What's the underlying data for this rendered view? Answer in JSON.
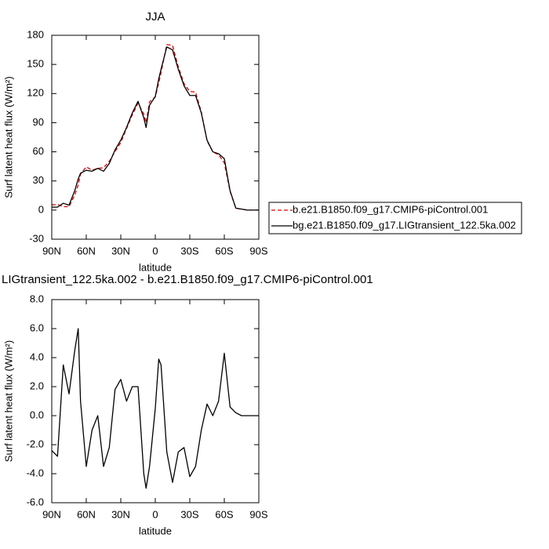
{
  "chart_data": [
    {
      "type": "line",
      "title": "JJA",
      "x_label": "latitude",
      "y_label": "Surf latent heat flux (W/m²)",
      "x": [
        90,
        85,
        80,
        75,
        70,
        67,
        65,
        60,
        55,
        50,
        45,
        40,
        35,
        30,
        25,
        20,
        15,
        10,
        8,
        5,
        0,
        -3,
        -5,
        -10,
        -15,
        -20,
        -25,
        -30,
        -35,
        -40,
        -45,
        -50,
        -55,
        -60,
        -65,
        -70,
        -75,
        -80,
        -85,
        -90
      ],
      "xlim": [
        90,
        -90
      ],
      "xticks": [
        {
          "value": 90,
          "label": "90N"
        },
        {
          "value": 60,
          "label": "60N"
        },
        {
          "value": 30,
          "label": "30N"
        },
        0,
        {
          "value": -30,
          "label": "30S"
        },
        {
          "value": -60,
          "label": "60S"
        },
        {
          "value": -90,
          "label": "90S"
        }
      ],
      "ylim": [
        -30,
        180
      ],
      "yticks": [
        -30,
        0,
        30,
        60,
        90,
        120,
        150,
        180
      ],
      "legend": "right",
      "series": [
        {
          "name": "b.e21.B1850.f09_g17.CMIP6-piControl.001",
          "color": "#e00000",
          "line_style": "dashed",
          "values": [
            5.4,
            5.8,
            3.5,
            3.5,
            15.5,
            26,
            37,
            44.5,
            41,
            43,
            43.5,
            50.2,
            60.2,
            69.5,
            84,
            98,
            110,
            99,
            90,
            111.5,
            116.5,
            131.1,
            141.5,
            170.5,
            169.6,
            147.5,
            130.2,
            122.2,
            121.5,
            101,
            71.2,
            60,
            57,
            48.7,
            19.4,
            1.8,
            1,
            0,
            0,
            0
          ]
        },
        {
          "name": "bg.e21.B1850.f09_g17.LIGtransient_122.5ka.002",
          "color": "#000000",
          "line_style": "solid",
          "values": [
            3,
            3,
            7,
            5,
            20,
            32,
            38,
            41,
            40,
            43,
            40,
            48,
            62,
            72,
            85,
            100,
            112,
            95,
            85,
            108,
            117,
            135,
            145,
            168,
            165,
            145,
            128,
            118,
            118,
            100,
            72,
            60,
            58,
            53,
            20,
            2,
            1,
            0,
            0,
            0
          ]
        }
      ]
    },
    {
      "type": "line",
      "title": "LIGtransient_122.5ka.002 - b.e21.B1850.f09_g17.CMIP6-piControl.001",
      "x_label": "latitude",
      "y_label": "Surf latent heat flux (W/m²)",
      "x": [
        90,
        85,
        80,
        75,
        70,
        67,
        65,
        60,
        55,
        50,
        45,
        40,
        35,
        30,
        25,
        20,
        15,
        10,
        8,
        5,
        0,
        -3,
        -5,
        -10,
        -15,
        -20,
        -25,
        -30,
        -35,
        -40,
        -45,
        -50,
        -55,
        -60,
        -65,
        -70,
        -75,
        -80,
        -85,
        -90
      ],
      "xlim": [
        90,
        -90
      ],
      "xticks": [
        {
          "value": 90,
          "label": "90N"
        },
        {
          "value": 60,
          "label": "60N"
        },
        {
          "value": 30,
          "label": "30N"
        },
        0,
        {
          "value": -30,
          "label": "30S"
        },
        {
          "value": -60,
          "label": "60S"
        },
        {
          "value": -90,
          "label": "90S"
        }
      ],
      "ylim": [
        -6,
        8
      ],
      "yticks": [
        {
          "value": -6,
          "label": "-6.0"
        },
        {
          "value": -4,
          "label": "-4.0"
        },
        {
          "value": -2,
          "label": "-2.0"
        },
        {
          "value": 0,
          "label": "0.0"
        },
        {
          "value": 2,
          "label": "2.0"
        },
        {
          "value": 4,
          "label": "4.0"
        },
        {
          "value": 6,
          "label": "6.0"
        },
        {
          "value": 8,
          "label": "8.0"
        }
      ],
      "series": [
        {
          "color": "#000000",
          "line_style": "solid",
          "values": [
            -2.4,
            -2.8,
            3.5,
            1.5,
            4.5,
            6,
            1,
            -3.5,
            -1,
            0,
            -3.5,
            -2.2,
            1.8,
            2.5,
            1,
            2,
            2,
            -4,
            -5,
            -3.5,
            0.5,
            3.9,
            3.5,
            -2.5,
            -4.6,
            -2.5,
            -2.2,
            -4.2,
            -3.5,
            -1,
            0.8,
            0,
            1,
            4.3,
            0.6,
            0.2,
            0,
            0,
            0,
            0
          ]
        }
      ]
    }
  ]
}
